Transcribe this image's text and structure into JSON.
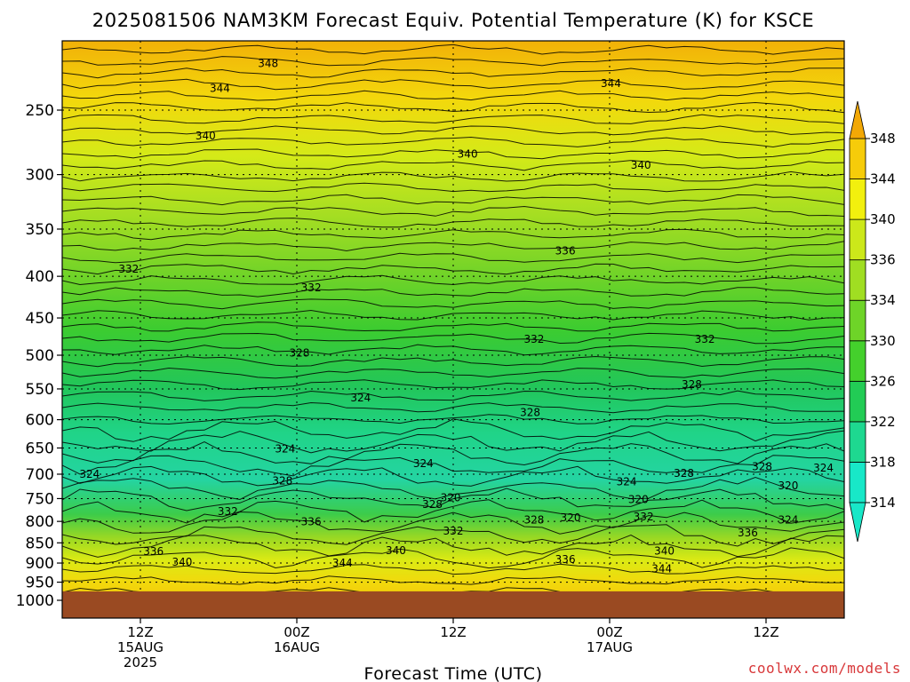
{
  "chart_data": {
    "type": "heatmap",
    "title": "2025081506 NAM3KM Forecast Equiv. Potential Temperature (K) for KSCE",
    "xlabel": "Forecast Time (UTC)",
    "ylabel": "",
    "x_ticks": [
      {
        "line1": "12Z",
        "line2": "15AUG",
        "line3": "2025",
        "hour": 6
      },
      {
        "line1": "00Z",
        "line2": "16AUG",
        "line3": "",
        "hour": 18
      },
      {
        "line1": "12Z",
        "line2": "",
        "line3": "",
        "hour": 30
      },
      {
        "line1": "00Z",
        "line2": "17AUG",
        "line3": "",
        "hour": 42
      },
      {
        "line1": "12Z",
        "line2": "",
        "line3": "",
        "hour": 54
      }
    ],
    "xlim": [
      0,
      60
    ],
    "y_ticks": [
      250,
      300,
      350,
      400,
      450,
      500,
      550,
      600,
      650,
      700,
      750,
      800,
      850,
      900,
      950,
      1000
    ],
    "ylim": [
      200,
      1000
    ],
    "y_scale": "log-pressure",
    "grid": true,
    "surface_pressure": 975,
    "colorbar": {
      "levels": [
        314,
        318,
        322,
        326,
        330,
        334,
        336,
        340,
        344,
        348
      ],
      "colors": [
        "#18e8c8",
        "#1ed890",
        "#22cc55",
        "#44d02c",
        "#6ed428",
        "#a0de22",
        "#cce81a",
        "#f2f00e",
        "#f6cc0a",
        "#f2a806"
      ],
      "position": "right"
    },
    "contour_labels": [
      {
        "text": "348",
        "hour": 15.8,
        "p": 219
      },
      {
        "text": "344",
        "hour": 12.1,
        "p": 235
      },
      {
        "text": "344",
        "hour": 42.1,
        "p": 232
      },
      {
        "text": "340",
        "hour": 11.0,
        "p": 269
      },
      {
        "text": "340",
        "hour": 31.1,
        "p": 283
      },
      {
        "text": "340",
        "hour": 44.4,
        "p": 292
      },
      {
        "text": "336",
        "hour": 38.6,
        "p": 372
      },
      {
        "text": "332",
        "hour": 5.1,
        "p": 392
      },
      {
        "text": "332",
        "hour": 19.1,
        "p": 413
      },
      {
        "text": "332",
        "hour": 36.2,
        "p": 478
      },
      {
        "text": "332",
        "hour": 49.3,
        "p": 478
      },
      {
        "text": "328",
        "hour": 18.2,
        "p": 497
      },
      {
        "text": "328",
        "hour": 48.3,
        "p": 543
      },
      {
        "text": "328",
        "hour": 35.9,
        "p": 588
      },
      {
        "text": "324",
        "hour": 22.9,
        "p": 564
      },
      {
        "text": "324",
        "hour": 17.1,
        "p": 652
      },
      {
        "text": "324",
        "hour": 2.1,
        "p": 700
      },
      {
        "text": "324",
        "hour": 27.7,
        "p": 679
      },
      {
        "text": "328",
        "hour": 16.9,
        "p": 713
      },
      {
        "text": "324",
        "hour": 43.3,
        "p": 715
      },
      {
        "text": "328",
        "hour": 47.7,
        "p": 698
      },
      {
        "text": "328",
        "hour": 53.7,
        "p": 685
      },
      {
        "text": "324",
        "hour": 58.4,
        "p": 688
      },
      {
        "text": "320",
        "hour": 55.7,
        "p": 723
      },
      {
        "text": "320",
        "hour": 29.8,
        "p": 748
      },
      {
        "text": "320",
        "hour": 44.2,
        "p": 752
      },
      {
        "text": "328",
        "hour": 28.4,
        "p": 762
      },
      {
        "text": "332",
        "hour": 12.7,
        "p": 778
      },
      {
        "text": "320",
        "hour": 39.0,
        "p": 792
      },
      {
        "text": "328",
        "hour": 36.2,
        "p": 797
      },
      {
        "text": "332",
        "hour": 44.6,
        "p": 790
      },
      {
        "text": "336",
        "hour": 19.1,
        "p": 801
      },
      {
        "text": "324",
        "hour": 55.7,
        "p": 797
      },
      {
        "text": "332",
        "hour": 30.0,
        "p": 822
      },
      {
        "text": "336",
        "hour": 52.6,
        "p": 826
      },
      {
        "text": "336",
        "hour": 7.0,
        "p": 871
      },
      {
        "text": "340",
        "hour": 25.6,
        "p": 869
      },
      {
        "text": "340",
        "hour": 9.2,
        "p": 898
      },
      {
        "text": "344",
        "hour": 21.5,
        "p": 900
      },
      {
        "text": "336",
        "hour": 38.6,
        "p": 891
      },
      {
        "text": "340",
        "hour": 46.2,
        "p": 870
      },
      {
        "text": "344",
        "hour": 46.0,
        "p": 915
      }
    ]
  },
  "watermark": "coolwx.com/models"
}
